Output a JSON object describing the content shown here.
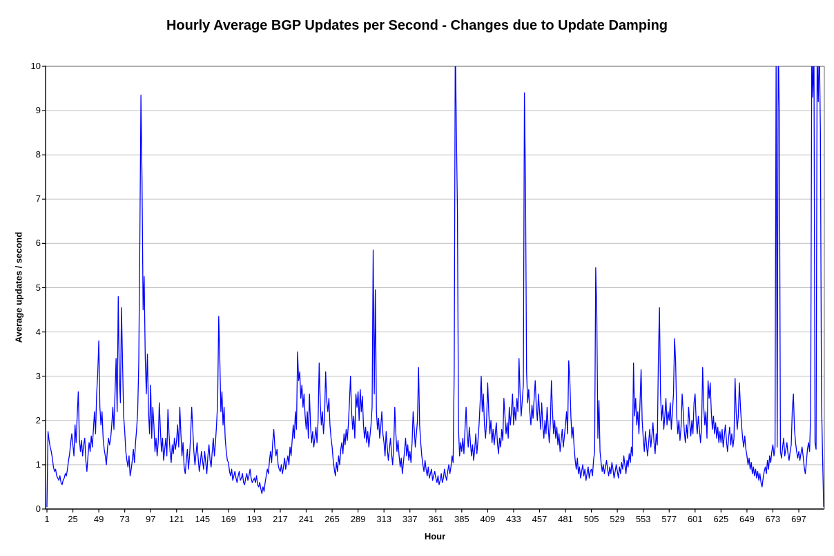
{
  "page": {
    "background": "#ffffff"
  },
  "chart_data": {
    "type": "line",
    "title": "Hourly Average BGP Updates per Second - Changes due to Update Damping",
    "xlabel": "Hour",
    "ylabel": "Average updates / second",
    "legend": "none",
    "grid": "horizontal",
    "ylim": [
      0,
      10
    ],
    "xlim": [
      1,
      721
    ],
    "x_unit": "hour",
    "x_start": 1,
    "x_ticks": [
      1,
      25,
      49,
      73,
      97,
      121,
      145,
      169,
      193,
      217,
      241,
      265,
      289,
      313,
      337,
      361,
      385,
      409,
      433,
      457,
      481,
      505,
      529,
      553,
      577,
      601,
      625,
      649,
      673,
      697
    ],
    "y_ticks": [
      0,
      1,
      2,
      3,
      4,
      5,
      6,
      7,
      8,
      9,
      10
    ],
    "series_name": "Average updates / second",
    "colors": {
      "line": "#0000ff",
      "gridline": "#c0c0c0",
      "axis": "#000000",
      "upper_border": "#808080",
      "plot_bg": "#ffffff"
    },
    "clipped_at_ymax_hours": [
      379,
      676,
      678,
      709,
      711,
      714,
      716
    ],
    "values": [
      0.05,
      1.75,
      1.55,
      1.4,
      1.3,
      1.15,
      0.95,
      0.85,
      0.9,
      0.75,
      0.7,
      0.65,
      0.75,
      0.6,
      0.55,
      0.65,
      0.7,
      0.8,
      0.75,
      0.9,
      1.1,
      1.25,
      1.5,
      1.7,
      1.45,
      1.2,
      1.9,
      1.5,
      2.1,
      2.65,
      1.6,
      1.3,
      1.55,
      1.2,
      1.45,
      1.6,
      1.1,
      0.85,
      1.2,
      1.5,
      1.3,
      1.65,
      1.4,
      1.8,
      2.2,
      1.7,
      2.6,
      3.05,
      3.8,
      2.3,
      1.9,
      2.2,
      1.6,
      1.35,
      1.2,
      1.0,
      1.35,
      1.6,
      1.45,
      1.6,
      1.9,
      2.3,
      1.8,
      2.6,
      3.4,
      2.2,
      4.8,
      3.0,
      2.4,
      4.55,
      3.3,
      2.1,
      1.75,
      1.3,
      1.1,
      0.95,
      1.2,
      0.75,
      0.9,
      1.1,
      1.35,
      1.05,
      1.5,
      1.8,
      2.2,
      3.3,
      6.1,
      9.35,
      7.45,
      4.5,
      5.25,
      3.4,
      2.6,
      3.5,
      2.2,
      1.7,
      2.8,
      1.6,
      2.3,
      1.9,
      1.3,
      1.6,
      1.2,
      1.5,
      2.4,
      1.8,
      1.3,
      1.6,
      1.1,
      1.35,
      1.6,
      1.2,
      2.25,
      1.7,
      1.3,
      1.05,
      1.45,
      1.25,
      1.6,
      1.35,
      1.55,
      1.9,
      1.4,
      2.3,
      1.7,
      1.2,
      1.5,
      0.95,
      0.8,
      1.1,
      1.35,
      0.9,
      1.2,
      1.65,
      2.3,
      1.8,
      1.3,
      1.0,
      1.25,
      1.5,
      1.15,
      0.85,
      1.05,
      1.3,
      1.1,
      0.9,
      1.3,
      1.05,
      0.8,
      1.2,
      1.45,
      1.1,
      0.95,
      1.3,
      1.6,
      1.2,
      1.5,
      1.9,
      2.4,
      4.35,
      3.4,
      2.2,
      2.65,
      1.9,
      2.3,
      1.6,
      1.3,
      1.1,
      1.05,
      0.85,
      0.75,
      0.9,
      0.65,
      0.75,
      0.85,
      0.7,
      0.6,
      0.75,
      0.85,
      0.65,
      0.7,
      0.8,
      0.6,
      0.55,
      0.7,
      0.8,
      0.65,
      0.75,
      0.9,
      0.7,
      0.6,
      0.65,
      0.7,
      0.6,
      0.75,
      0.55,
      0.5,
      0.6,
      0.45,
      0.35,
      0.5,
      0.4,
      0.6,
      0.75,
      0.9,
      0.8,
      1.1,
      1.3,
      1.05,
      1.5,
      1.8,
      1.4,
      1.2,
      1.35,
      1.0,
      0.9,
      0.85,
      1.0,
      0.8,
      0.95,
      1.15,
      0.9,
      1.05,
      1.2,
      1.0,
      1.4,
      1.2,
      1.55,
      1.9,
      1.6,
      2.2,
      1.8,
      3.55,
      2.9,
      3.1,
      2.5,
      2.8,
      2.3,
      2.6,
      2.1,
      1.8,
      2.2,
      1.6,
      2.6,
      1.9,
      1.5,
      1.75,
      1.4,
      1.6,
      1.85,
      1.5,
      2.0,
      3.3,
      2.4,
      1.9,
      2.2,
      1.7,
      2.1,
      3.1,
      2.45,
      2.2,
      2.5,
      1.9,
      1.6,
      1.4,
      1.1,
      0.9,
      0.75,
      1.05,
      0.85,
      1.2,
      1.0,
      1.35,
      1.5,
      1.25,
      1.7,
      1.45,
      1.8,
      1.55,
      1.9,
      2.4,
      3.0,
      2.2,
      1.8,
      2.1,
      1.6,
      2.6,
      2.3,
      2.65,
      2.0,
      2.7,
      2.2,
      2.55,
      1.9,
      1.6,
      1.85,
      1.5,
      1.75,
      1.4,
      1.65,
      1.9,
      2.3,
      5.85,
      2.6,
      4.95,
      2.2,
      1.8,
      2.05,
      1.6,
      1.85,
      2.2,
      1.7,
      1.5,
      1.2,
      1.75,
      1.4,
      1.1,
      1.35,
      1.6,
      1.25,
      1.0,
      1.4,
      2.3,
      1.7,
      1.3,
      1.55,
      1.2,
      0.95,
      1.15,
      0.8,
      1.05,
      1.3,
      1.6,
      1.2,
      1.45,
      1.1,
      1.3,
      1.05,
      1.5,
      2.2,
      1.8,
      1.4,
      1.7,
      2.0,
      3.2,
      1.9,
      1.5,
      1.2,
      1.0,
      0.85,
      1.1,
      0.9,
      0.75,
      0.95,
      0.7,
      0.8,
      0.9,
      0.65,
      0.75,
      0.85,
      0.7,
      0.6,
      0.75,
      0.55,
      0.65,
      0.8,
      0.6,
      0.7,
      0.9,
      0.75,
      0.65,
      0.85,
      1.0,
      0.8,
      0.95,
      1.2,
      1.05,
      3.1,
      10.6,
      8.6,
      6.7,
      1.8,
      1.2,
      1.5,
      1.3,
      1.6,
      1.25,
      1.8,
      2.3,
      1.7,
      1.4,
      1.85,
      1.5,
      1.2,
      1.45,
      1.1,
      1.35,
      1.7,
      1.25,
      1.55,
      1.9,
      2.4,
      3.0,
      2.2,
      2.6,
      1.9,
      1.6,
      2.0,
      2.85,
      2.2,
      1.7,
      2.0,
      1.5,
      1.8,
      1.45,
      1.7,
      1.95,
      1.5,
      1.25,
      1.6,
      1.4,
      1.8,
      1.55,
      2.5,
      2.1,
      1.7,
      1.95,
      1.6,
      2.3,
      1.9,
      2.2,
      2.6,
      1.9,
      2.3,
      2.0,
      2.5,
      2.2,
      3.4,
      2.6,
      2.1,
      2.45,
      2.8,
      9.4,
      7.35,
      3.1,
      2.4,
      2.7,
      2.2,
      1.9,
      2.35,
      2.05,
      2.5,
      2.9,
      2.3,
      2.0,
      2.6,
      2.2,
      1.8,
      2.4,
      1.9,
      1.6,
      2.0,
      1.7,
      2.3,
      1.85,
      1.5,
      1.95,
      2.9,
      2.2,
      1.7,
      2.0,
      1.6,
      1.85,
      1.45,
      1.7,
      1.3,
      1.55,
      1.8,
      1.4,
      1.65,
      1.9,
      2.2,
      1.7,
      3.35,
      2.95,
      2.1,
      1.6,
      1.85,
      1.4,
      1.1,
      0.9,
      1.15,
      0.8,
      0.95,
      0.7,
      0.85,
      1.0,
      0.75,
      0.9,
      0.65,
      0.8,
      0.95,
      0.7,
      0.85,
      0.9,
      0.75,
      1.1,
      1.3,
      5.45,
      4.4,
      1.6,
      2.45,
      1.3,
      1.05,
      0.85,
      1.0,
      0.8,
      0.95,
      1.1,
      0.9,
      0.75,
      0.95,
      0.8,
      1.05,
      0.9,
      0.7,
      0.85,
      1.0,
      0.85,
      0.7,
      0.95,
      0.8,
      1.05,
      0.9,
      1.2,
      1.0,
      0.8,
      1.1,
      0.95,
      1.25,
      1.05,
      1.4,
      1.2,
      3.3,
      2.1,
      2.5,
      1.9,
      2.2,
      1.7,
      2.4,
      3.15,
      2.0,
      1.6,
      1.3,
      1.75,
      1.45,
      1.2,
      1.5,
      1.8,
      1.4,
      1.65,
      1.95,
      1.5,
      1.25,
      1.7,
      1.45,
      3.4,
      4.55,
      2.6,
      2.0,
      2.35,
      1.8,
      2.1,
      2.5,
      1.9,
      2.2,
      2.0,
      2.4,
      1.8,
      2.2,
      2.6,
      3.85,
      3.3,
      2.1,
      1.7,
      2.0,
      1.55,
      1.85,
      2.6,
      2.2,
      1.75,
      1.5,
      1.9,
      1.6,
      2.3,
      1.95,
      1.65,
      2.0,
      1.7,
      2.4,
      2.6,
      2.0,
      1.7,
      2.1,
      1.8,
      1.5,
      1.85,
      3.2,
      2.3,
      1.9,
      2.2,
      1.6,
      2.9,
      2.5,
      2.85,
      2.2,
      1.8,
      2.1,
      1.7,
      1.95,
      1.6,
      1.85,
      1.5,
      1.75,
      1.5,
      1.8,
      1.4,
      1.65,
      1.9,
      1.55,
      1.3,
      1.6,
      1.85,
      1.45,
      1.7,
      1.4,
      1.6,
      2.95,
      2.2,
      1.8,
      2.1,
      2.85,
      2.3,
      1.9,
      1.6,
      1.4,
      1.65,
      1.35,
      1.2,
      1.0,
      1.15,
      0.9,
      1.05,
      0.8,
      0.95,
      0.75,
      0.9,
      0.7,
      0.85,
      0.65,
      0.8,
      0.6,
      0.5,
      0.7,
      0.85,
      0.95,
      0.8,
      1.1,
      0.9,
      1.2,
      1.05,
      1.3,
      1.45,
      1.2,
      1.4,
      10.3,
      1.4,
      10.6,
      8.8,
      1.3,
      1.15,
      1.4,
      1.6,
      1.2,
      1.35,
      1.5,
      1.25,
      1.1,
      1.3,
      1.45,
      2.25,
      2.6,
      1.8,
      1.5,
      1.3,
      1.15,
      1.3,
      1.1,
      1.25,
      1.4,
      1.2,
      0.95,
      0.8,
      1.05,
      1.35,
      1.5,
      1.3,
      2.2,
      10.4,
      9.3,
      10.5,
      1.5,
      1.35,
      10.4,
      9.2,
      10.6,
      8.5,
      2.5,
      1.2,
      0.05
    ]
  }
}
